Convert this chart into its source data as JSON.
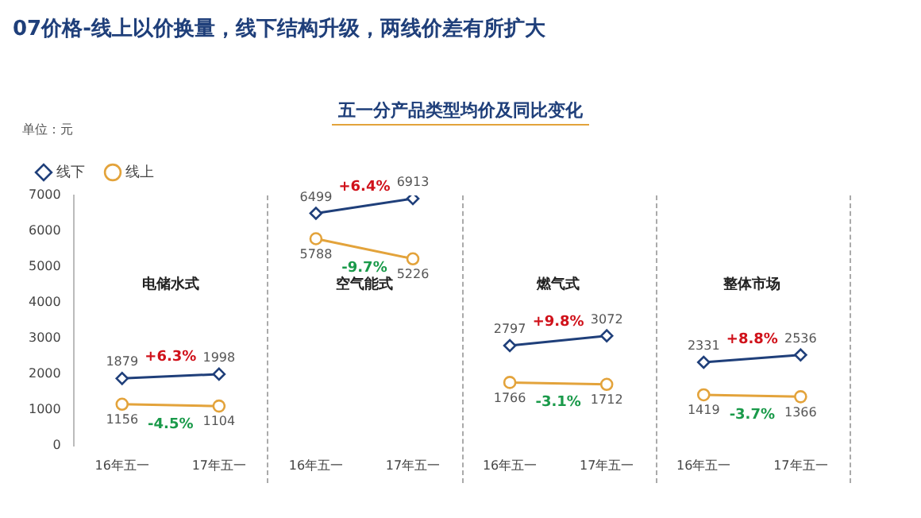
{
  "chart_data": {
    "type": "line",
    "title": "07价格-线上以价换量，线下结构升级，两线价差有所扩大",
    "subtitle": "五一分产品类型均价及同比变化",
    "ylabel": "单位：元",
    "categories": [
      "16年五一",
      "17年五一",
      "16年五一",
      "17年五一",
      "16年五一",
      "17年五一",
      "16年五一",
      "17年五一"
    ],
    "series": [
      {
        "name": "线下",
        "color": "#1f3f7a",
        "marker": "diamond",
        "values": [
          1879,
          1998,
          null,
          null,
          null,
          null,
          null,
          null
        ]
      },
      {
        "name": "线上",
        "color": "#e3a33b",
        "marker": "circle",
        "values": [
          1156,
          1104,
          null,
          null,
          null,
          null,
          null,
          null
        ]
      },
      {
        "color": "#1f3f7a",
        "marker": "diamond",
        "values": [
          null,
          null,
          6499,
          6913,
          null,
          null,
          null,
          null
        ]
      },
      {
        "color": "#e3a33b",
        "marker": "circle",
        "values": [
          null,
          null,
          5788,
          5226,
          null,
          null,
          null,
          null
        ]
      },
      {
        "color": "#1f3f7a",
        "marker": "diamond",
        "values": [
          null,
          null,
          null,
          null,
          2797,
          3072,
          null,
          null
        ]
      },
      {
        "color": "#e3a33b",
        "marker": "circle",
        "values": [
          null,
          null,
          null,
          null,
          1766,
          1712,
          null,
          null
        ]
      },
      {
        "color": "#1f3f7a",
        "marker": "diamond",
        "values": [
          null,
          null,
          null,
          null,
          null,
          null,
          2331,
          2536
        ]
      },
      {
        "color": "#e3a33b",
        "marker": "circle",
        "values": [
          null,
          null,
          null,
          null,
          null,
          null,
          1419,
          1366
        ]
      }
    ],
    "ylim": [
      0,
      7000
    ],
    "yticks": [
      0,
      1000,
      2000,
      3000,
      4000,
      5000,
      6000,
      7000
    ],
    "grid": false,
    "legend": "top left",
    "data_labels": true,
    "annotations": [
      "电储水式",
      "+6.3%",
      "-4.5%",
      "空气能式",
      "+6.4%",
      "-9.7%",
      "燃气式",
      "+9.8%",
      "-3.1%",
      "整体市场",
      "+8.8%",
      "-3.7%"
    ]
  }
}
